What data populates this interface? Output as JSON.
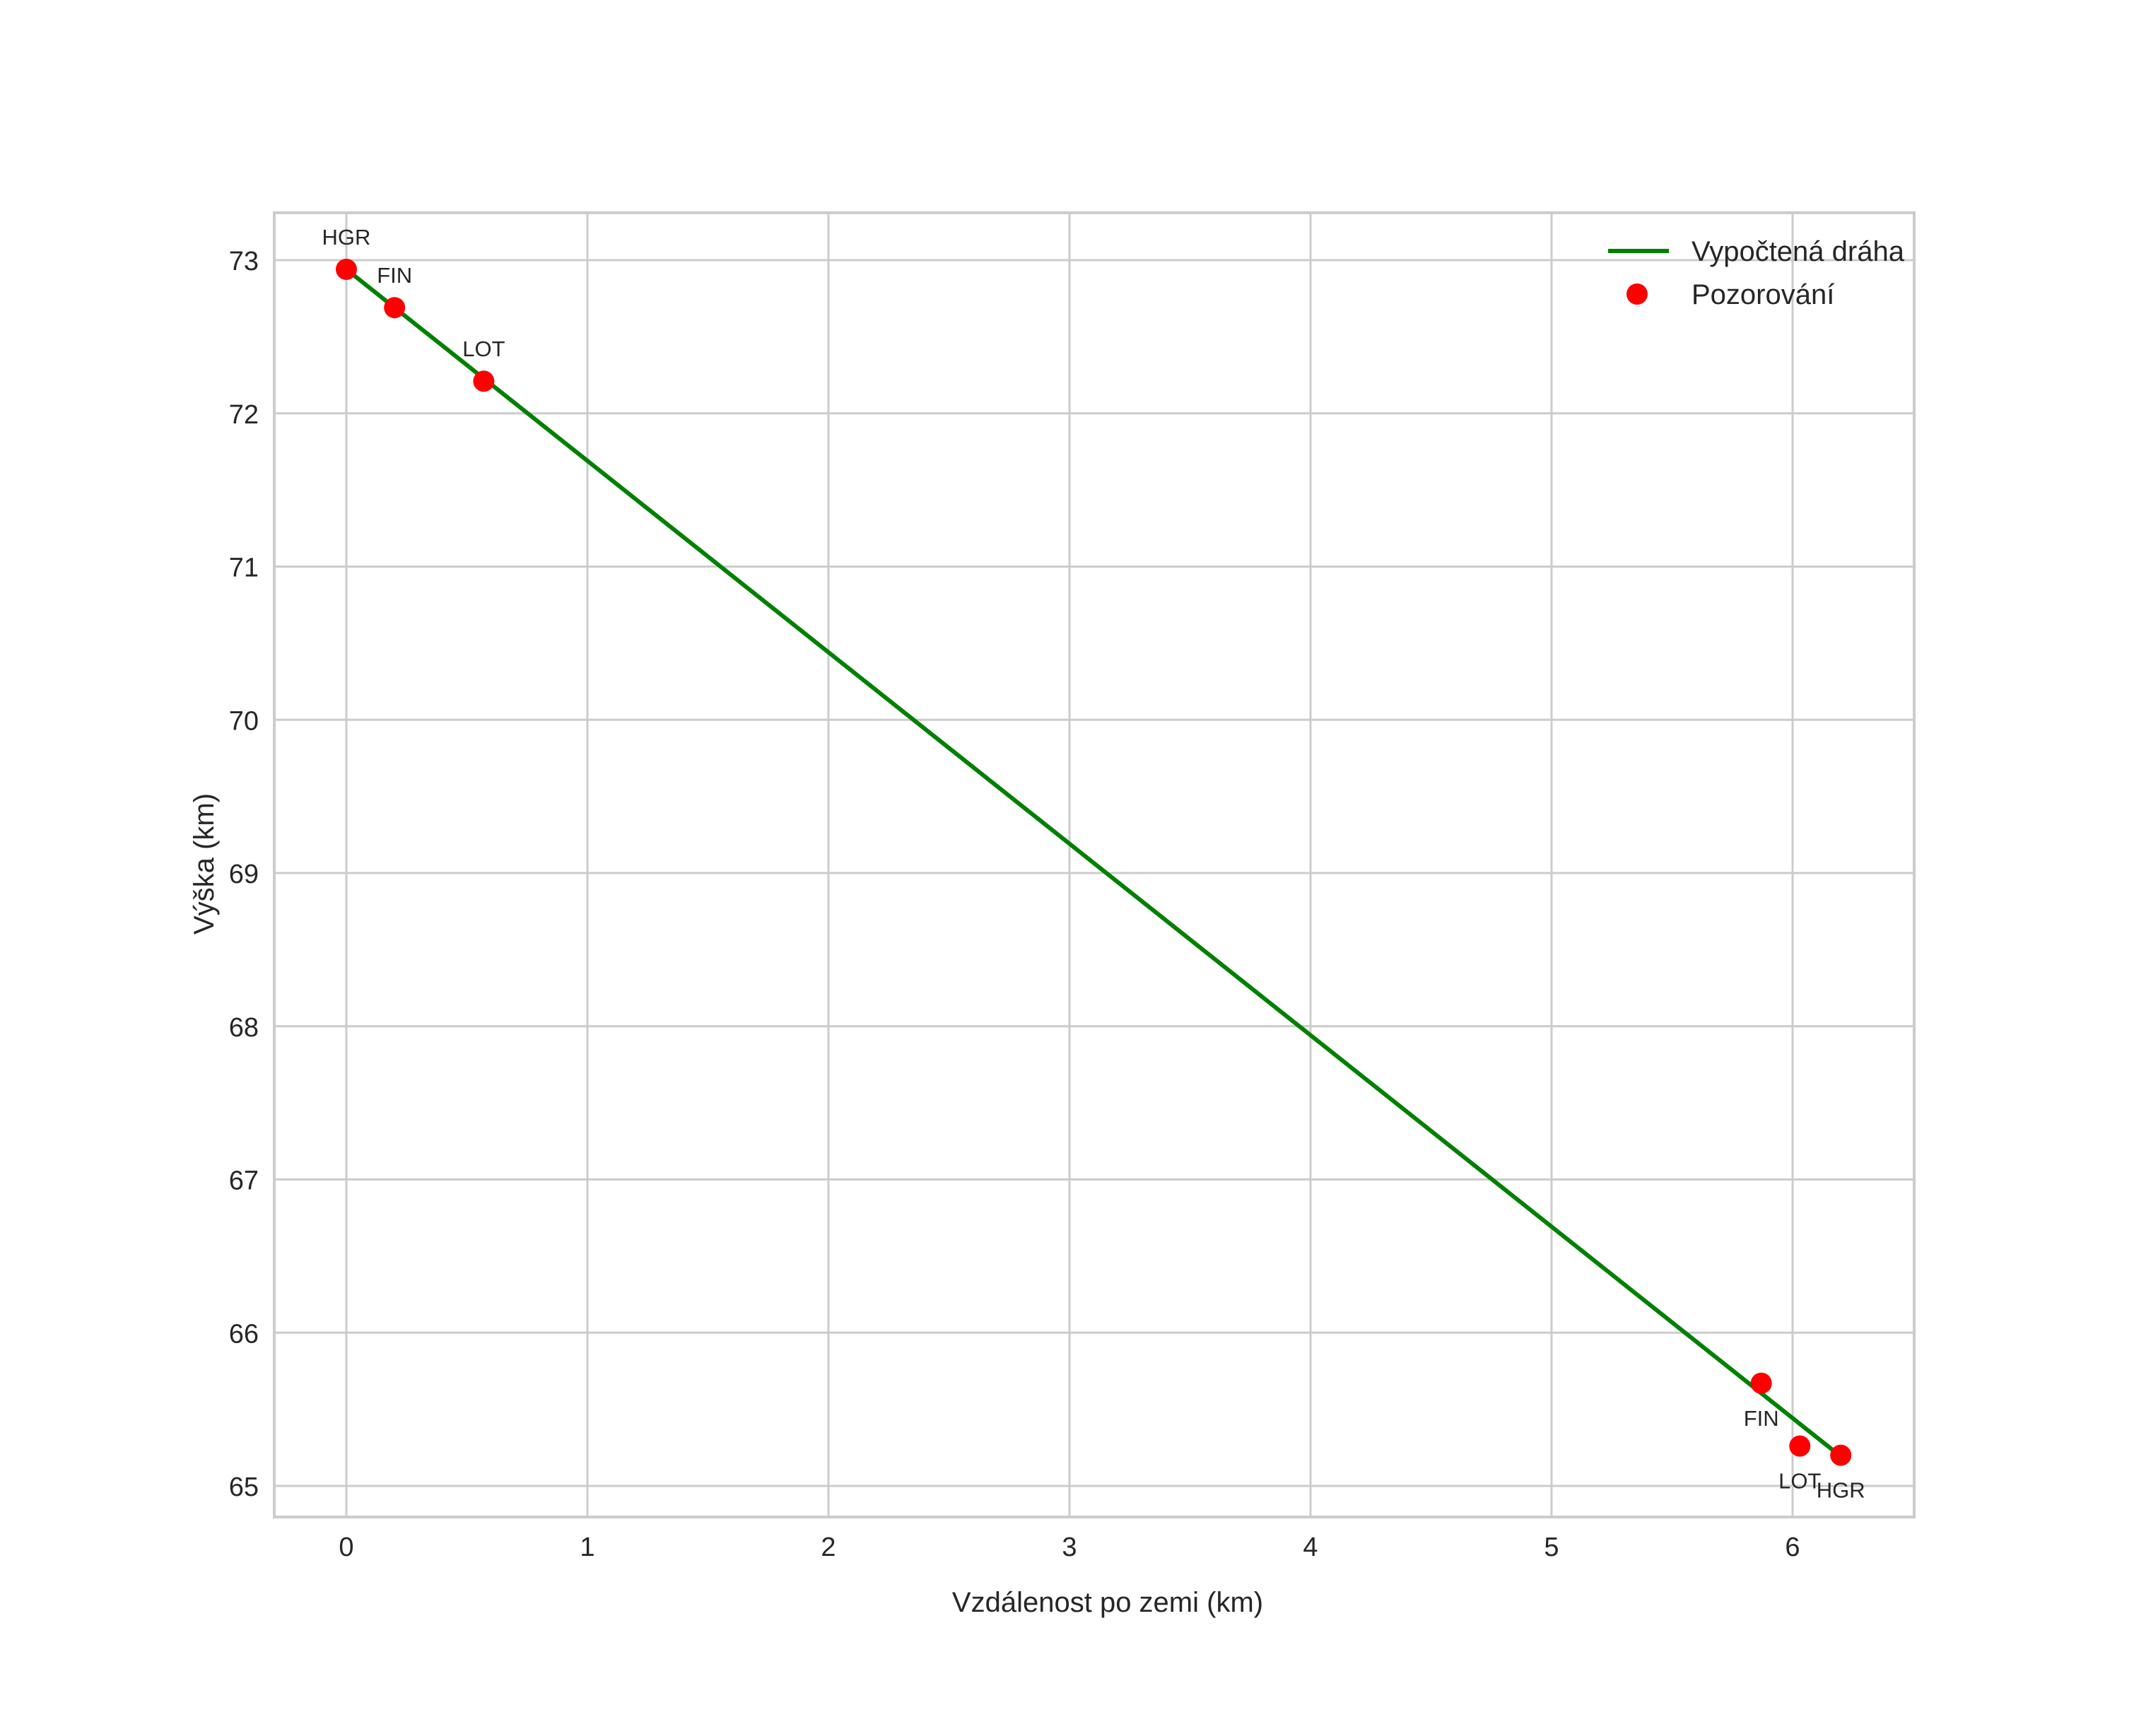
{
  "chart_data": {
    "type": "line",
    "title": "",
    "xlabel": "Vzdálenost po zemi (km)",
    "ylabel": "Výška (km)",
    "xlim": [
      -0.31,
      6.5
    ],
    "ylim": [
      64.8,
      73.32
    ],
    "xticks": [
      0,
      1,
      2,
      3,
      4,
      5,
      6
    ],
    "yticks": [
      65,
      66,
      67,
      68,
      69,
      70,
      71,
      72,
      73
    ],
    "grid": true,
    "legend_position": "upper right",
    "colors": {
      "line": "#008000",
      "points": "#ff0000",
      "grid": "#cccccc",
      "text": "#262626"
    },
    "series": [
      {
        "name": "Vypočtená dráha",
        "kind": "line",
        "x": [
          0.0,
          6.17
        ],
        "y": [
          72.94,
          65.23
        ]
      },
      {
        "name": "Pozorování",
        "kind": "scatter",
        "points": [
          {
            "label": "HGR",
            "x": 0.0,
            "y": 72.94,
            "label_pos": "above"
          },
          {
            "label": "FIN",
            "x": 0.2,
            "y": 72.69,
            "label_pos": "above"
          },
          {
            "label": "LOT",
            "x": 0.57,
            "y": 72.21,
            "label_pos": "above"
          },
          {
            "label": "FIN",
            "x": 5.87,
            "y": 65.67,
            "label_pos": "below"
          },
          {
            "label": "LOT",
            "x": 6.03,
            "y": 65.26,
            "label_pos": "below"
          },
          {
            "label": "HGR",
            "x": 6.2,
            "y": 65.2,
            "label_pos": "below"
          }
        ]
      }
    ]
  },
  "legend": {
    "items": [
      {
        "label": "Vypočtená dráha",
        "symbol": "line"
      },
      {
        "label": "Pozorování",
        "symbol": "dot"
      }
    ]
  }
}
